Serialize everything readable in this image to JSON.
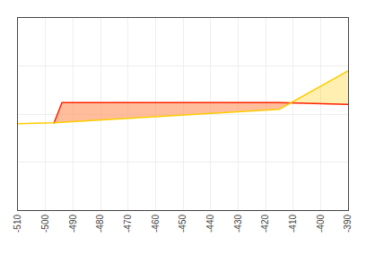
{
  "chart_data": {
    "type": "line",
    "series": [
      {
        "color": "#FFCC00",
        "x": [
          -510,
          -497,
          -415,
          -390
        ],
        "values": [
          -1.0,
          -0.9,
          0.5,
          4.5
        ]
      },
      {
        "color": "#FF2200",
        "x": [
          -497,
          -494,
          -415,
          -390
        ],
        "values": [
          -1.0,
          1.2,
          1.2,
          1.0
        ]
      }
    ],
    "xlim": [
      -510,
      -390
    ],
    "xticks": [
      -510,
      -500,
      -490,
      -480,
      -470,
      -460,
      -450,
      -440,
      -430,
      -420,
      -410,
      -400,
      -390
    ],
    "ylim": [
      -10,
      10
    ],
    "yticks": [
      -10,
      -5,
      0,
      5,
      10
    ],
    "grid": true,
    "tick_labels": "x"
  }
}
